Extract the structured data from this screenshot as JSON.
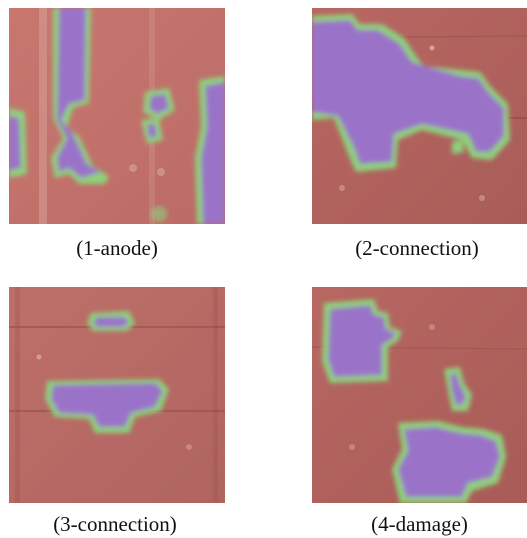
{
  "panels": [
    {
      "caption": "(1-anode)"
    },
    {
      "caption": "(2-connection)"
    },
    {
      "caption": "(3-connection)"
    },
    {
      "caption": "(4-damage)"
    }
  ],
  "colors": {
    "background": "#bf6f6a",
    "hotspot": "#9a73c8",
    "halo_green": "#8fd07a",
    "halo_cyan": "#5fb5a8"
  }
}
